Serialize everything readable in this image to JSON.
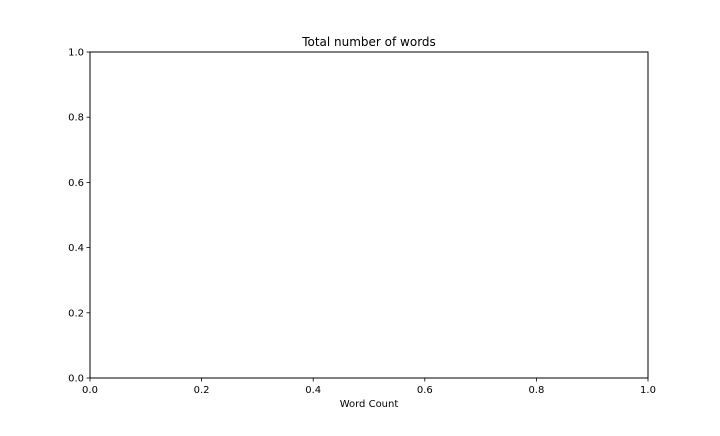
{
  "chart_data": {
    "type": "line",
    "title": "Total number of words",
    "xlabel": "Word Count",
    "ylabel": "",
    "xlim": [
      0.0,
      1.0
    ],
    "ylim": [
      0.0,
      1.0
    ],
    "x_ticks": [
      "0.0",
      "0.2",
      "0.4",
      "0.6",
      "0.8",
      "1.0"
    ],
    "y_ticks": [
      "0.0",
      "0.2",
      "0.4",
      "0.6",
      "0.8",
      "1.0"
    ],
    "series": [],
    "grid": false
  }
}
